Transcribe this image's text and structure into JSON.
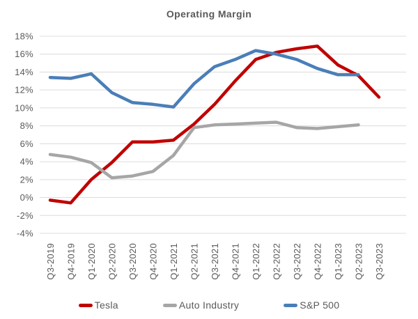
{
  "chart_data": {
    "type": "line",
    "title": "Operating Margin",
    "categories": [
      "Q3-2019",
      "Q4-2019",
      "Q1-2020",
      "Q2-2020",
      "Q3-2020",
      "Q4-2020",
      "Q1-2021",
      "Q2-2021",
      "Q3-2021",
      "Q4-2021",
      "Q1-2022",
      "Q2-2022",
      "Q3-2022",
      "Q4-2022",
      "Q1-2023",
      "Q2-2023",
      "Q3-2023"
    ],
    "series": [
      {
        "name": "Tesla",
        "color": "#c00000",
        "values": [
          -0.3,
          -0.6,
          2.0,
          3.9,
          6.2,
          6.2,
          6.4,
          8.2,
          10.4,
          13.0,
          15.4,
          16.2,
          16.6,
          16.9,
          14.8,
          13.6,
          11.2
        ]
      },
      {
        "name": "Auto Industry",
        "color": "#a6a6a6",
        "values": [
          4.8,
          4.5,
          3.9,
          2.2,
          2.4,
          2.9,
          4.7,
          7.8,
          8.1,
          8.2,
          8.3,
          8.4,
          7.8,
          7.7,
          7.9,
          8.1,
          null
        ]
      },
      {
        "name": "S&P 500",
        "color": "#4a7eb8",
        "values": [
          13.4,
          13.3,
          13.8,
          11.7,
          10.6,
          10.4,
          10.1,
          12.7,
          14.6,
          15.4,
          16.4,
          16.0,
          15.4,
          14.4,
          13.7,
          13.7,
          null
        ]
      }
    ],
    "ylim": [
      -4,
      18
    ],
    "ytick_step": 2,
    "ytick_labels": [
      "18%",
      "16%",
      "14%",
      "12%",
      "10%",
      "8%",
      "6%",
      "4%",
      "2%",
      "0%",
      "-2%",
      "-4%"
    ],
    "grid": true,
    "grid_color": "#dcdcdc",
    "text_color": "#595959",
    "legend_position": "bottom",
    "xlabel": "",
    "ylabel": ""
  }
}
